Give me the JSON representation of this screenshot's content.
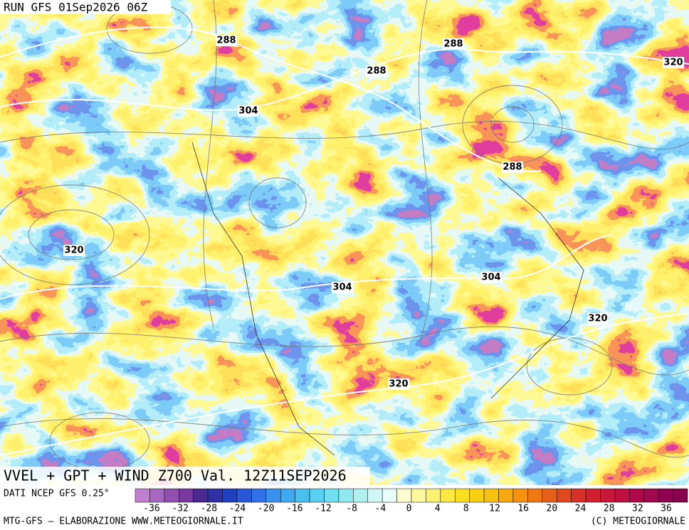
{
  "header": {
    "run": "RUN GFS 01Sep2026 06Z"
  },
  "map": {
    "contour_labels": [
      288,
      288,
      288,
      288,
      320,
      304,
      320,
      304,
      304,
      320,
      320
    ]
  },
  "footer": {
    "title": "VVEL + GPT + WIND Z700 Val. 12Z11SEP2026",
    "source": "DATI NCEP GFS 0.25°",
    "credit_left": "MTG-GFS — ELABORAZIONE WWW.METEOGIORNALE.IT",
    "credit_right": "(C) METEOGIORNALE"
  },
  "colorbar": {
    "ticks": [
      -36,
      -32,
      -28,
      -24,
      -20,
      -16,
      -12,
      -8,
      -4,
      0,
      4,
      8,
      12,
      16,
      20,
      24,
      28,
      32,
      36
    ],
    "colors": [
      "#c080d0",
      "#a868c0",
      "#9050b0",
      "#7838a0",
      "#4a2890",
      "#3030a8",
      "#2040c0",
      "#2858d8",
      "#3070e8",
      "#3890f0",
      "#40a8f0",
      "#48c0f0",
      "#58d0f0",
      "#70e0f0",
      "#90e8f0",
      "#b0f0f0",
      "#d0f8f8",
      "#e8fcf8",
      "#fcfcd0",
      "#fcf8a0",
      "#fcf070",
      "#fce840",
      "#fce020",
      "#f8d010",
      "#f8c010",
      "#f8a810",
      "#f89010",
      "#f07810",
      "#e86018",
      "#e04820",
      "#d83028",
      "#d02030",
      "#c81838",
      "#c01040",
      "#b00848",
      "#a00850",
      "#900050",
      "#880050"
    ]
  }
}
